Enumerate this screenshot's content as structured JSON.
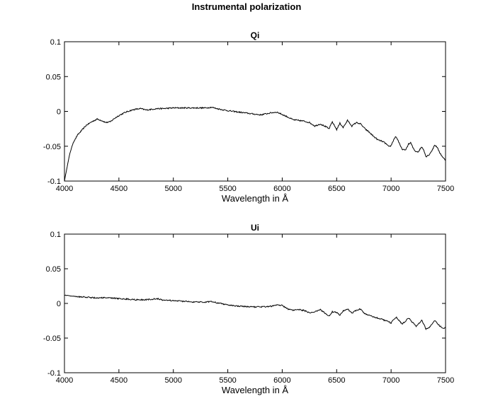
{
  "figure": {
    "title": "Instrumental polarization"
  },
  "chart_data": [
    {
      "type": "line",
      "title": "Qi",
      "xlabel": "Wavelength in Å",
      "ylabel": "",
      "xlim": [
        4000,
        7500
      ],
      "ylim": [
        -0.1,
        0.1
      ],
      "xticks": [
        4000,
        4500,
        5000,
        5500,
        6000,
        6500,
        7000,
        7500
      ],
      "xtick_labels": [
        "4000",
        "4500",
        "5000",
        "5500",
        "6000",
        "6500",
        "7000",
        "7500"
      ],
      "yticks": [
        -0.1,
        -0.05,
        0,
        0.05,
        0.1
      ],
      "ytick_labels": [
        "-0.1",
        "-0.05",
        "0",
        "0.05",
        "0.1"
      ],
      "grid": false,
      "line_color": "#000000",
      "series": [
        {
          "x": [
            4000,
            4020,
            4050,
            4080,
            4120,
            4160,
            4200,
            4250,
            4300,
            4340,
            4380,
            4420,
            4460,
            4500,
            4550,
            4600,
            4650,
            4700,
            4750,
            4800,
            4850,
            4900,
            5000,
            5100,
            5200,
            5300,
            5350,
            5400,
            5500,
            5600,
            5700,
            5800,
            5900,
            5950,
            5980,
            6050,
            6100,
            6150,
            6200,
            6250,
            6300,
            6350,
            6400,
            6430,
            6460,
            6500,
            6530,
            6560,
            6600,
            6640,
            6680,
            6720,
            6760,
            6800,
            6840,
            6880,
            6920,
            6950,
            6980,
            7000,
            7020,
            7040,
            7060,
            7080,
            7100,
            7130,
            7160,
            7180,
            7200,
            7220,
            7250,
            7280,
            7300,
            7320,
            7350,
            7380,
            7400,
            7420,
            7450,
            7480,
            7500
          ],
          "y": [
            -0.1,
            -0.083,
            -0.06,
            -0.045,
            -0.034,
            -0.027,
            -0.02,
            -0.015,
            -0.011,
            -0.013,
            -0.016,
            -0.015,
            -0.01,
            -0.006,
            -0.002,
            0.001,
            0.003,
            0.004,
            0.002,
            0.003,
            0.004,
            0.004,
            0.005,
            0.005,
            0.005,
            0.005,
            0.006,
            0.004,
            0.001,
            -0.001,
            -0.003,
            -0.005,
            -0.002,
            -0.001,
            -0.003,
            -0.008,
            -0.012,
            -0.013,
            -0.014,
            -0.016,
            -0.021,
            -0.018,
            -0.022,
            -0.025,
            -0.015,
            -0.026,
            -0.017,
            -0.023,
            -0.013,
            -0.021,
            -0.016,
            -0.018,
            -0.025,
            -0.03,
            -0.036,
            -0.041,
            -0.043,
            -0.046,
            -0.051,
            -0.049,
            -0.042,
            -0.036,
            -0.04,
            -0.048,
            -0.054,
            -0.056,
            -0.047,
            -0.045,
            -0.052,
            -0.057,
            -0.058,
            -0.051,
            -0.055,
            -0.065,
            -0.062,
            -0.055,
            -0.048,
            -0.051,
            -0.06,
            -0.067,
            -0.07
          ]
        }
      ]
    },
    {
      "type": "line",
      "title": "Ui",
      "xlabel": "Wavelength in Å",
      "ylabel": "",
      "xlim": [
        4000,
        7500
      ],
      "ylim": [
        -0.1,
        0.1
      ],
      "xticks": [
        4000,
        4500,
        5000,
        5500,
        6000,
        6500,
        7000,
        7500
      ],
      "xtick_labels": [
        "4000",
        "4500",
        "5000",
        "5500",
        "6000",
        "6500",
        "7000",
        "7500"
      ],
      "yticks": [
        -0.1,
        -0.05,
        0,
        0.05,
        0.1
      ],
      "ytick_labels": [
        "-0.1",
        "-0.05",
        "0",
        "0.05",
        "0.1"
      ],
      "grid": false,
      "line_color": "#000000",
      "series": [
        {
          "x": [
            4000,
            4050,
            4100,
            4200,
            4300,
            4400,
            4500,
            4600,
            4700,
            4800,
            4850,
            4900,
            5000,
            5100,
            5200,
            5300,
            5350,
            5400,
            5500,
            5600,
            5700,
            5800,
            5900,
            5950,
            6000,
            6050,
            6100,
            6150,
            6200,
            6250,
            6300,
            6350,
            6400,
            6430,
            6460,
            6500,
            6530,
            6560,
            6600,
            6640,
            6680,
            6720,
            6760,
            6800,
            6850,
            6900,
            6950,
            7000,
            7020,
            7050,
            7080,
            7100,
            7130,
            7160,
            7180,
            7200,
            7230,
            7250,
            7280,
            7300,
            7320,
            7350,
            7380,
            7400,
            7420,
            7450,
            7480,
            7500
          ],
          "y": [
            0.012,
            0.011,
            0.01,
            0.009,
            0.008,
            0.008,
            0.007,
            0.006,
            0.005,
            0.006,
            0.007,
            0.005,
            0.004,
            0.003,
            0.002,
            0.002,
            0.003,
            0.001,
            -0.002,
            -0.004,
            -0.005,
            -0.005,
            -0.004,
            -0.002,
            -0.003,
            -0.008,
            -0.01,
            -0.009,
            -0.01,
            -0.014,
            -0.012,
            -0.009,
            -0.015,
            -0.018,
            -0.012,
            -0.013,
            -0.017,
            -0.011,
            -0.008,
            -0.014,
            -0.01,
            -0.008,
            -0.015,
            -0.017,
            -0.02,
            -0.022,
            -0.025,
            -0.028,
            -0.024,
            -0.02,
            -0.026,
            -0.03,
            -0.026,
            -0.021,
            -0.024,
            -0.028,
            -0.033,
            -0.03,
            -0.024,
            -0.03,
            -0.037,
            -0.035,
            -0.029,
            -0.025,
            -0.028,
            -0.033,
            -0.036,
            -0.034
          ]
        }
      ]
    }
  ]
}
